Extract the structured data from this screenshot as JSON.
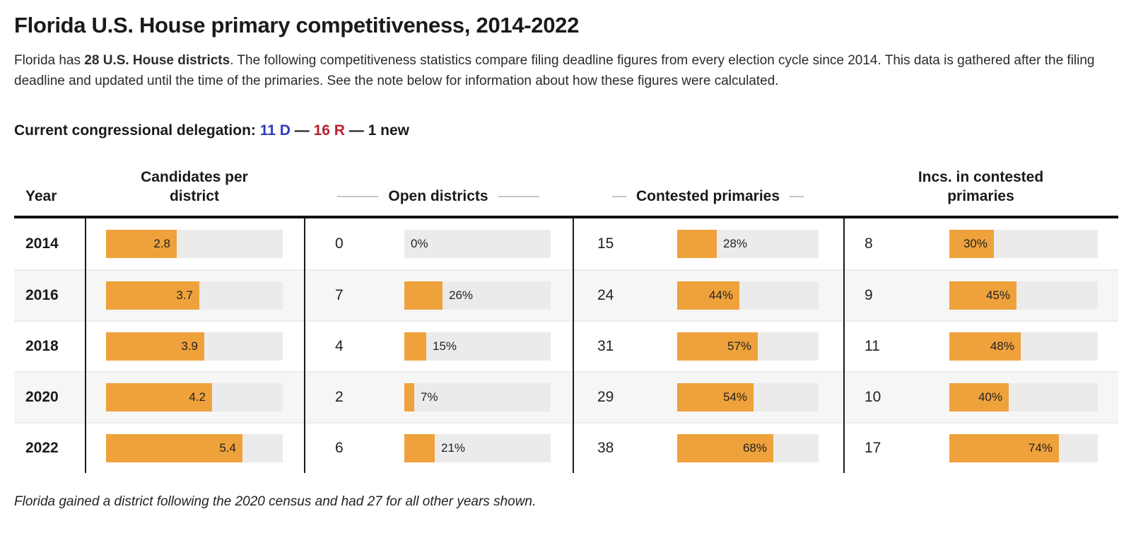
{
  "page": {
    "title": "Florida U.S. House primary competitiveness, 2014-2022",
    "intro_prefix": "Florida has ",
    "intro_bold": "28 U.S. House districts",
    "intro_suffix": ". The following competitiveness statistics compare filing deadline figures from every election cycle since 2014. This data is gathered after the filing deadline and updated until the time of the primaries. See the note below for information about how these figures were calculated.",
    "delegation_label": "Current congressional delegation: ",
    "delegation_dem": "11 D",
    "delegation_sep1": " — ",
    "delegation_rep": "16 R",
    "delegation_sep2": " — ",
    "delegation_new": "1 new",
    "footnote": "Florida gained a district following the 2020 census and had 27 for all other years shown."
  },
  "colors": {
    "bar_orange": "#EFA23B",
    "track_gray": "#EBEBEB",
    "dem_blue": "#2D3ABE",
    "rep_red": "#B9202D",
    "divider_black": "#1A1A1A"
  },
  "table": {
    "headers": {
      "year": "Year",
      "candidates": "Candidates per district",
      "open": "Open districts",
      "contested": "Contested primaries",
      "incs": "Incs. in contested primaries"
    }
  },
  "chart_data": {
    "type": "bar",
    "title": "Florida U.S. House primary competitiveness, 2014-2022",
    "bar_color": "#EFA23B",
    "candidates_axis_max": 7,
    "pct_axis_max": 100,
    "categories": [
      "2014",
      "2016",
      "2018",
      "2020",
      "2022"
    ],
    "rows": [
      {
        "year": "2014",
        "candidates_per_district": 2.8,
        "open_districts": 0,
        "open_districts_pct": 0,
        "contested_primaries": 15,
        "contested_primaries_pct": 28,
        "incs_in_contested": 8,
        "incs_in_contested_pct": 30
      },
      {
        "year": "2016",
        "candidates_per_district": 3.7,
        "open_districts": 7,
        "open_districts_pct": 26,
        "contested_primaries": 24,
        "contested_primaries_pct": 44,
        "incs_in_contested": 9,
        "incs_in_contested_pct": 45
      },
      {
        "year": "2018",
        "candidates_per_district": 3.9,
        "open_districts": 4,
        "open_districts_pct": 15,
        "contested_primaries": 31,
        "contested_primaries_pct": 57,
        "incs_in_contested": 11,
        "incs_in_contested_pct": 48
      },
      {
        "year": "2020",
        "candidates_per_district": 4.2,
        "open_districts": 2,
        "open_districts_pct": 7,
        "contested_primaries": 29,
        "contested_primaries_pct": 54,
        "incs_in_contested": 10,
        "incs_in_contested_pct": 40
      },
      {
        "year": "2022",
        "candidates_per_district": 5.4,
        "open_districts": 6,
        "open_districts_pct": 21,
        "contested_primaries": 38,
        "contested_primaries_pct": 68,
        "incs_in_contested": 17,
        "incs_in_contested_pct": 74
      }
    ]
  }
}
